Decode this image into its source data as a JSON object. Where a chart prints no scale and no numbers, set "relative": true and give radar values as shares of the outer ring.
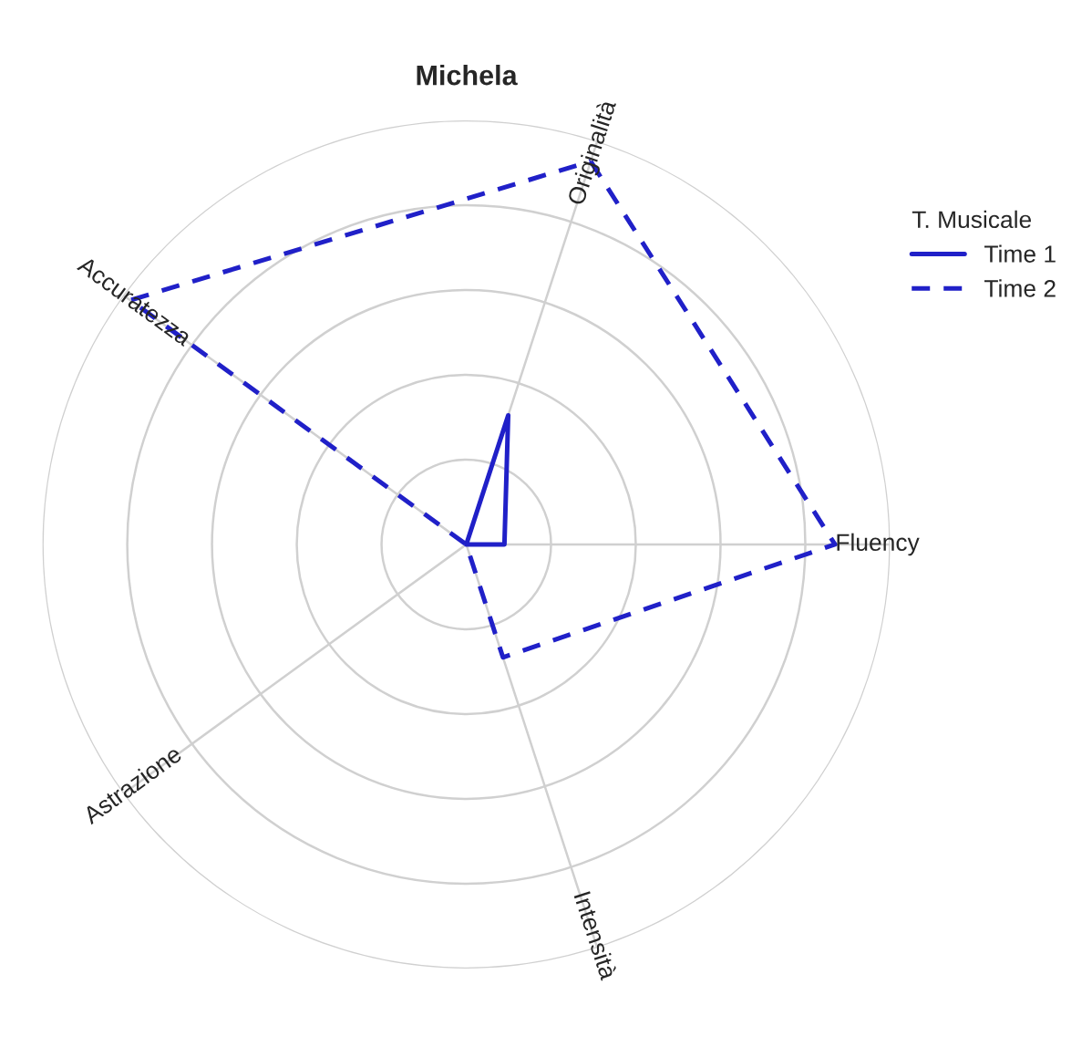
{
  "chart_data": {
    "type": "radar",
    "title": "Michela",
    "categories": [
      "Originalità",
      "Fluency",
      "Intensità",
      "Astrazione",
      "Accuratezza"
    ],
    "relative": true,
    "legend_title": "T. Musicale",
    "legend": "right",
    "grid": true,
    "marker": "none",
    "series": [
      {
        "name": "Time 1",
        "color": "#2020c8",
        "line_style": "solid",
        "values": [
          0.32,
          0.09,
          0,
          0,
          0
        ]
      },
      {
        "name": "Time 2",
        "color": "#2020c8",
        "line_style": "dashed",
        "values": [
          0.95,
          0.87,
          0.28,
          0,
          0.98
        ]
      }
    ]
  }
}
